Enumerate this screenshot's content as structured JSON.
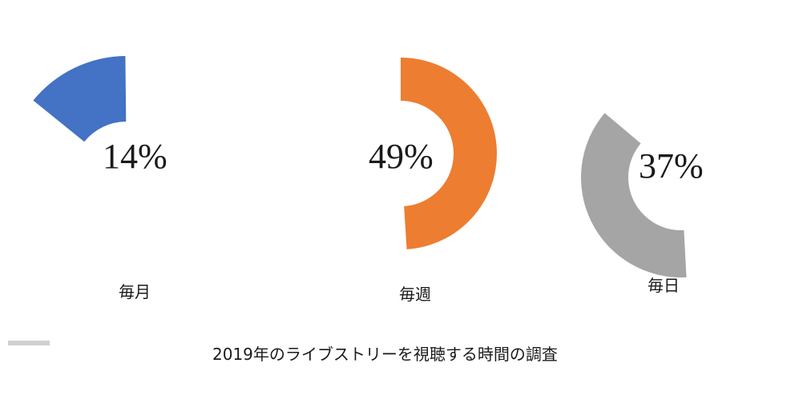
{
  "chart_data": {
    "type": "pie",
    "title": "2019年のライブストリーを視聴する時間の調査",
    "series": [
      {
        "label": "毎月",
        "value": 14,
        "value_label": "14%",
        "color": "#4472C4"
      },
      {
        "label": "毎週",
        "value": 49,
        "value_label": "49%",
        "color": "#ED7D31"
      },
      {
        "label": "毎日",
        "value": 37,
        "value_label": "37%",
        "color": "#A5A5A5"
      }
    ],
    "legend_swatch_color": "#D0D0D0"
  }
}
